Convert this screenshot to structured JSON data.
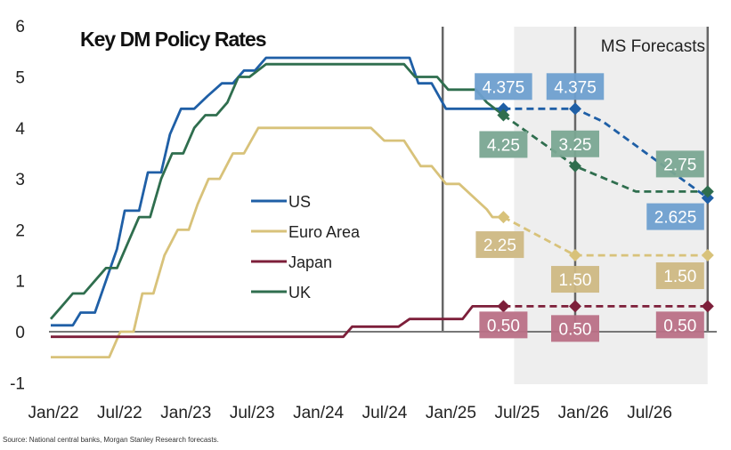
{
  "chart_data": {
    "type": "line",
    "title": "Key DM Policy Rates",
    "forecast_region_label": "MS Forecasts",
    "source": "Source: National central banks, Morgan Stanley Research forecasts.",
    "xlabel": "",
    "ylabel": "",
    "ylim": [
      -1,
      6
    ],
    "yticks": [
      "6",
      "5",
      "4",
      "3",
      "2",
      "1",
      "0",
      "-1"
    ],
    "ytick_values": [
      6,
      5,
      4,
      3,
      2,
      1,
      0,
      -1
    ],
    "xticks": [
      "Jan/22",
      "Jul/22",
      "Jan/23",
      "Jul/23",
      "Jan/24",
      "Jul/24",
      "Jan/25",
      "Jul/25",
      "Jan/26",
      "Jul/26"
    ],
    "xtick_months": [
      0,
      6,
      12,
      18,
      24,
      30,
      36,
      42,
      48,
      54
    ],
    "x_unit": "months since Jan 2022",
    "xlim": [
      0,
      60
    ],
    "grid": false,
    "legend_position": "center-left",
    "forecast_start_month": 41,
    "vertical_markers_months": [
      35.5,
      47.5,
      59.5
    ],
    "series": [
      {
        "name": "US",
        "color": "#1f5fa6",
        "label_color": "#6e9fcf",
        "history": [
          [
            0,
            0.125
          ],
          [
            2,
            0.125
          ],
          [
            2.7,
            0.375
          ],
          [
            4,
            0.375
          ],
          [
            4.8,
            0.875
          ],
          [
            6,
            1.625
          ],
          [
            6.7,
            2.375
          ],
          [
            8,
            2.375
          ],
          [
            8.8,
            3.125
          ],
          [
            10,
            3.125
          ],
          [
            10.8,
            3.875
          ],
          [
            11.8,
            4.375
          ],
          [
            13,
            4.375
          ],
          [
            14.2,
            4.625
          ],
          [
            15.5,
            4.875
          ],
          [
            16.5,
            4.875
          ],
          [
            17.5,
            5.125
          ],
          [
            18.5,
            5.125
          ],
          [
            19.5,
            5.375
          ],
          [
            32.5,
            5.375
          ],
          [
            33.3,
            4.875
          ],
          [
            34.5,
            4.875
          ],
          [
            35.8,
            4.375
          ],
          [
            41,
            4.375
          ]
        ],
        "forecast": [
          [
            41,
            4.375
          ],
          [
            47.5,
            4.375
          ],
          [
            50,
            4.125
          ],
          [
            59.5,
            2.625
          ]
        ],
        "markers": [
          {
            "month": 41,
            "value": 4.375,
            "label": "4.375",
            "label_pos": "above"
          },
          {
            "month": 47.5,
            "value": 4.375,
            "label": "4.375",
            "label_pos": "above"
          },
          {
            "month": 59.5,
            "value": 2.625,
            "label": "2.625",
            "label_pos": "below"
          }
        ]
      },
      {
        "name": "Euro Area",
        "color": "#d8c27a",
        "label_color": "#cdb883",
        "history": [
          [
            0,
            -0.5
          ],
          [
            5.3,
            -0.5
          ],
          [
            6.3,
            0
          ],
          [
            7.5,
            0
          ],
          [
            8.3,
            0.75
          ],
          [
            9.3,
            0.75
          ],
          [
            10.3,
            1.5
          ],
          [
            11.5,
            2.0
          ],
          [
            12.5,
            2.0
          ],
          [
            13.3,
            2.5
          ],
          [
            14.3,
            3.0
          ],
          [
            15.3,
            3.0
          ],
          [
            16.5,
            3.5
          ],
          [
            17.5,
            3.5
          ],
          [
            18.8,
            4.0
          ],
          [
            29,
            4.0
          ],
          [
            30.2,
            3.75
          ],
          [
            32,
            3.75
          ],
          [
            33.5,
            3.25
          ],
          [
            34.5,
            3.25
          ],
          [
            35.8,
            2.9
          ],
          [
            37,
            2.9
          ],
          [
            39.5,
            2.4
          ],
          [
            40,
            2.25
          ],
          [
            41,
            2.25
          ]
        ],
        "forecast": [
          [
            41,
            2.25
          ],
          [
            47.5,
            1.5
          ],
          [
            59.5,
            1.5
          ]
        ],
        "markers": [
          {
            "month": 41,
            "value": 2.25,
            "label": "2.25",
            "label_pos": "below"
          },
          {
            "month": 47.5,
            "value": 1.5,
            "label": "1.50",
            "label_pos": "below"
          },
          {
            "month": 59.5,
            "value": 1.5,
            "label": "1.50",
            "label_pos": "below"
          }
        ]
      },
      {
        "name": "Japan",
        "color": "#7d1f3a",
        "label_color": "#b97086",
        "history": [
          [
            0,
            -0.1
          ],
          [
            26.5,
            -0.1
          ],
          [
            27.3,
            0.1
          ],
          [
            31.5,
            0.1
          ],
          [
            32.5,
            0.25
          ],
          [
            37.3,
            0.25
          ],
          [
            38.2,
            0.5
          ],
          [
            41,
            0.5
          ]
        ],
        "forecast": [
          [
            41,
            0.5
          ],
          [
            47.5,
            0.5
          ],
          [
            59.5,
            0.5
          ]
        ],
        "markers": [
          {
            "month": 41,
            "value": 0.5,
            "label": "0.50",
            "label_pos": "below"
          },
          {
            "month": 47.5,
            "value": 0.5,
            "label": "0.50",
            "label_pos": "below"
          },
          {
            "month": 59.5,
            "value": 0.5,
            "label": "0.50",
            "label_pos": "below"
          }
        ]
      },
      {
        "name": "UK",
        "color": "#2f6e4e",
        "label_color": "#7aa792",
        "history": [
          [
            0,
            0.25
          ],
          [
            1,
            0.5
          ],
          [
            2,
            0.75
          ],
          [
            3,
            0.75
          ],
          [
            4,
            1.0
          ],
          [
            5,
            1.25
          ],
          [
            6,
            1.25
          ],
          [
            7,
            1.75
          ],
          [
            8,
            2.25
          ],
          [
            9,
            2.25
          ],
          [
            10,
            3.0
          ],
          [
            11,
            3.5
          ],
          [
            12,
            3.5
          ],
          [
            13,
            4.0
          ],
          [
            14,
            4.25
          ],
          [
            15,
            4.25
          ],
          [
            16,
            4.5
          ],
          [
            17,
            5.0
          ],
          [
            18,
            5.0
          ],
          [
            19.5,
            5.25
          ],
          [
            32,
            5.25
          ],
          [
            33,
            5.0
          ],
          [
            35,
            5.0
          ],
          [
            36,
            4.75
          ],
          [
            38.5,
            4.75
          ],
          [
            39.5,
            4.5
          ],
          [
            41,
            4.25
          ]
        ],
        "forecast": [
          [
            41,
            4.25
          ],
          [
            47.5,
            3.25
          ],
          [
            53,
            2.75
          ],
          [
            59.5,
            2.75
          ]
        ],
        "markers": [
          {
            "month": 41,
            "value": 4.25,
            "label": "4.25",
            "label_pos": "below"
          },
          {
            "month": 47.5,
            "value": 3.25,
            "label": "3.25",
            "label_pos": "above"
          },
          {
            "month": 59.5,
            "value": 2.75,
            "label": "2.75",
            "label_pos": "above"
          }
        ]
      }
    ]
  }
}
